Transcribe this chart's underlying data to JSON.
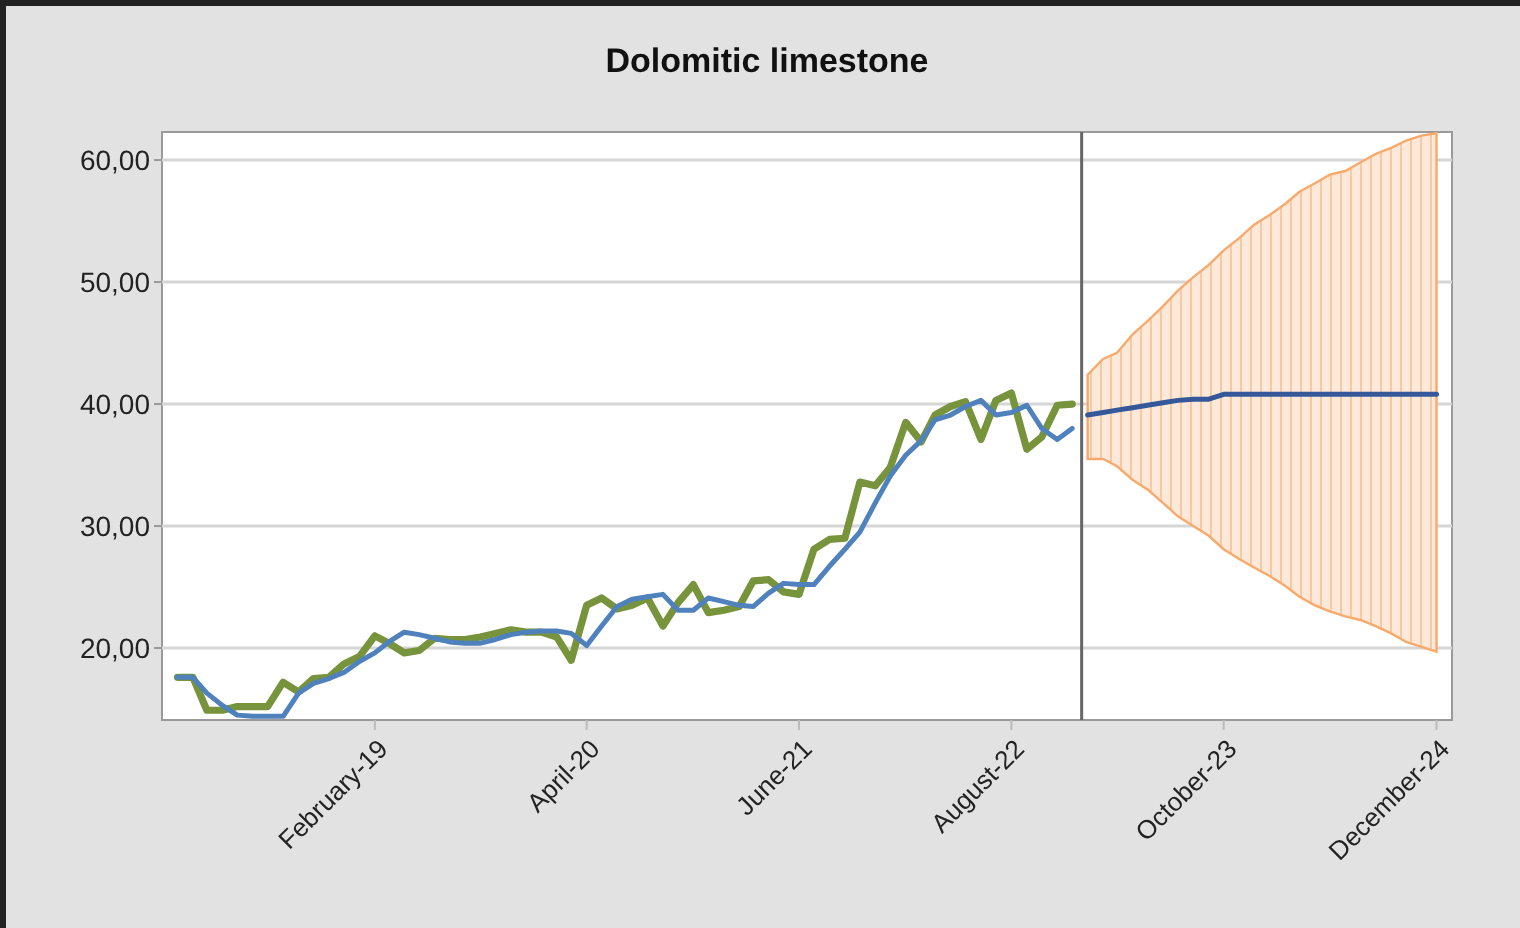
{
  "chart_data": {
    "type": "line",
    "title": "Dolomitic limestone",
    "x": [
      "2018-01",
      "2018-02",
      "2018-03",
      "2018-04",
      "2018-05",
      "2018-06",
      "2018-07",
      "2018-08",
      "2018-09",
      "2018-10",
      "2018-11",
      "2018-12",
      "2019-01",
      "2019-02",
      "2019-03",
      "2019-04",
      "2019-05",
      "2019-06",
      "2019-07",
      "2019-08",
      "2019-09",
      "2019-10",
      "2019-11",
      "2019-12",
      "2020-01",
      "2020-02",
      "2020-03",
      "2020-04",
      "2020-05",
      "2020-06",
      "2020-07",
      "2020-08",
      "2020-09",
      "2020-10",
      "2020-11",
      "2020-12",
      "2021-01",
      "2021-02",
      "2021-03",
      "2021-04",
      "2021-05",
      "2021-06",
      "2021-07",
      "2021-08",
      "2021-09",
      "2021-10",
      "2021-11",
      "2021-12",
      "2022-01",
      "2022-02",
      "2022-03",
      "2022-04",
      "2022-05",
      "2022-06",
      "2022-07",
      "2022-08",
      "2022-09",
      "2022-10",
      "2022-11",
      "2022-12"
    ],
    "series": [
      {
        "color": "#77933c",
        "values": [
          17.6,
          17.6,
          14.9,
          14.9,
          15.2,
          15.2,
          15.2,
          17.2,
          16.4,
          17.5,
          17.6,
          18.7,
          19.3,
          21.0,
          20.4,
          19.6,
          19.8,
          20.8,
          20.7,
          20.7,
          20.9,
          21.2,
          21.5,
          21.3,
          21.3,
          20.9,
          19.0,
          23.5,
          24.1,
          23.2,
          23.5,
          24.1,
          21.8,
          23.7,
          25.2,
          22.9,
          23.1,
          23.4,
          25.5,
          25.6,
          24.6,
          24.4,
          28.1,
          28.9,
          29.0,
          33.6,
          33.3,
          34.8,
          38.5,
          36.9,
          39.1,
          39.8,
          40.2,
          37.1,
          40.3,
          40.9,
          36.3,
          37.3,
          39.9,
          40.0
        ]
      },
      {
        "color": "#4f81bd",
        "values": [
          17.6,
          17.6,
          16.3,
          15.3,
          14.5,
          14.4,
          14.4,
          14.4,
          16.3,
          17.1,
          17.5,
          18.0,
          18.9,
          19.6,
          20.5,
          21.3,
          21.1,
          20.8,
          20.5,
          20.4,
          20.4,
          20.7,
          21.1,
          21.3,
          21.4,
          21.4,
          21.2,
          20.2,
          21.8,
          23.4,
          24.0,
          24.2,
          24.4,
          23.1,
          23.1,
          24.1,
          23.8,
          23.5,
          23.4,
          24.5,
          25.3,
          25.2,
          25.2,
          26.7,
          28.1,
          29.5,
          31.9,
          34.1,
          35.8,
          37.0,
          38.7,
          39.1,
          39.8,
          40.3,
          39.1,
          39.3,
          39.9,
          38.0,
          37.1,
          38.0
        ]
      },
      {
        "color": "#34589a",
        "x": [
          "2023-01",
          "2023-02",
          "2023-03",
          "2023-04",
          "2023-05",
          "2023-06",
          "2023-07",
          "2023-08",
          "2023-09",
          "2023-10",
          "2023-11",
          "2023-12",
          "2024-01",
          "2024-02",
          "2024-03",
          "2024-04",
          "2024-05",
          "2024-06",
          "2024-07",
          "2024-08",
          "2024-09",
          "2024-10",
          "2024-11",
          "2024-12"
        ],
        "values": [
          39.1,
          39.3,
          39.5,
          39.7,
          39.9,
          40.1,
          40.3,
          40.4,
          40.4,
          40.8,
          40.8,
          40.8,
          40.8,
          40.8,
          40.8,
          40.8,
          40.8,
          40.8,
          40.8,
          40.8,
          40.8,
          40.8,
          40.8,
          40.8
        ],
        "upper": [
          42.4,
          43.7,
          44.2,
          45.7,
          46.8,
          48.0,
          49.3,
          50.4,
          51.4,
          52.6,
          53.6,
          54.7,
          55.5,
          56.4,
          57.4,
          58.1,
          58.8,
          59.1,
          59.8,
          60.5,
          61.0,
          61.6,
          62.0,
          62.2
        ],
        "lower": [
          35.5,
          35.5,
          34.9,
          33.8,
          33.0,
          31.9,
          30.8,
          30.0,
          29.2,
          28.1,
          27.3,
          26.6,
          25.9,
          25.1,
          24.2,
          23.5,
          23.0,
          22.6,
          22.3,
          21.8,
          21.2,
          20.5,
          20.1,
          19.7
        ]
      }
    ],
    "xlim": [
      "2017-12",
      "2025-01"
    ],
    "xticks": [
      {
        "value": "2019-02",
        "label": "February-19"
      },
      {
        "value": "2020-04",
        "label": "April-20"
      },
      {
        "value": "2021-06",
        "label": "June-21"
      },
      {
        "value": "2022-08",
        "label": "August-22"
      },
      {
        "value": "2023-10",
        "label": "October-23"
      },
      {
        "value": "2024-12",
        "label": "December-24"
      }
    ],
    "ylim": [
      14.1,
      62.3
    ],
    "yticks": [
      {
        "value": 20,
        "label": "20,00"
      },
      {
        "value": 30,
        "label": "30,00"
      },
      {
        "value": 40,
        "label": "40,00"
      },
      {
        "value": 50,
        "label": "50,00"
      },
      {
        "value": 60,
        "label": "60,00"
      }
    ],
    "grid": "y",
    "ref_lines": [
      {
        "axis": "x",
        "value": "2022-12-20",
        "color": "#666666"
      }
    ]
  }
}
